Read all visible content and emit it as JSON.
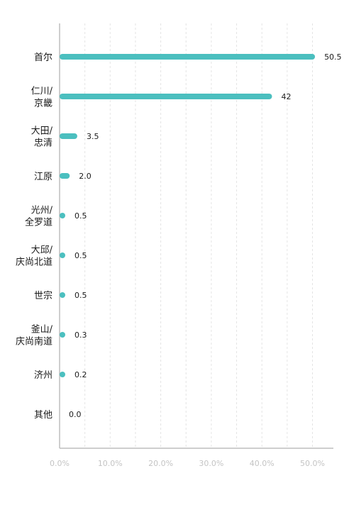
{
  "chart_data": {
    "type": "bar",
    "orientation": "horizontal",
    "categories": [
      [
        "首尔"
      ],
      [
        "仁川/",
        "京畿"
      ],
      [
        "大田/",
        "忠清"
      ],
      [
        "江原"
      ],
      [
        "光州/",
        "全罗道"
      ],
      [
        "大邱/",
        "庆尚北道"
      ],
      [
        "世宗"
      ],
      [
        "釜山/",
        "庆尚南道"
      ],
      [
        "济州"
      ],
      [
        "其他"
      ]
    ],
    "values": [
      50.5,
      42,
      3.5,
      2.0,
      0.5,
      0.5,
      0.5,
      0.3,
      0.2,
      0.0
    ],
    "value_labels": [
      "50.5",
      "42",
      "3.5",
      "2.0",
      "0.5",
      "0.5",
      "0.5",
      "0.3",
      "0.2",
      "0.0"
    ],
    "xlim": [
      0,
      54
    ],
    "x_ticks": [
      0,
      5,
      10,
      15,
      20,
      25,
      30,
      35,
      40,
      45,
      50
    ],
    "x_tick_labels": [
      "0.0%",
      "",
      "10.0%",
      "",
      "20.0%",
      "",
      "30.0%",
      "",
      "40.0%",
      "",
      "50.0%"
    ],
    "gridlines": "vertical-dashed",
    "bar_color": "#4bbfbf",
    "axis_color": "#bdbdbd",
    "tick_label_color": "#c4c4c4",
    "category_label_color": "#1a1a1a"
  }
}
